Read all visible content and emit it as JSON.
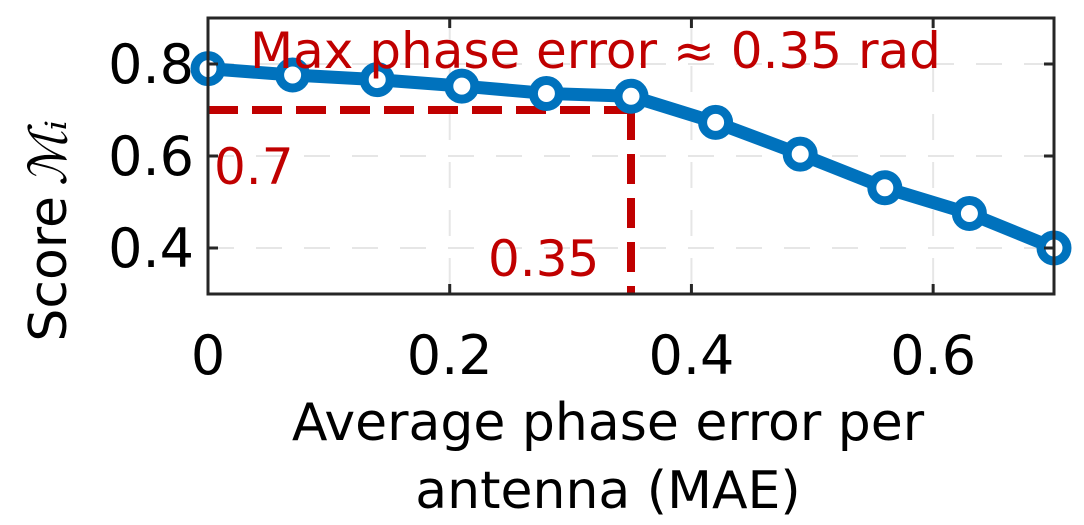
{
  "chart_data": {
    "type": "line",
    "xlabel_line1": "Average phase error per",
    "xlabel_line2": "antenna (MAE)",
    "ylabel_text": "Score",
    "ylabel_math": "ℳᵢ",
    "xlim": [
      0,
      0.7
    ],
    "ylim": [
      0.3,
      0.9
    ],
    "x_ticks": [
      0,
      0.2,
      0.4,
      0.6
    ],
    "x_tick_labels": [
      "0",
      "0.2",
      "0.4",
      "0.6"
    ],
    "y_ticks": [
      0.4,
      0.6,
      0.8
    ],
    "y_tick_labels": [
      "0.4",
      "0.6",
      "0.8"
    ],
    "grid": true,
    "series": [
      {
        "x": [
          0,
          0.07,
          0.14,
          0.21,
          0.28,
          0.35,
          0.42,
          0.49,
          0.56,
          0.63,
          0.7
        ],
        "y": [
          0.79,
          0.776,
          0.766,
          0.752,
          0.736,
          0.73,
          0.673,
          0.604,
          0.531,
          0.475,
          0.4
        ],
        "color": "#0072BD"
      }
    ],
    "reference_lines": {
      "color": "#C00000",
      "y_value": 0.7,
      "y_label": "0.7",
      "x_value": 0.35,
      "x_label": "0.35"
    },
    "annotation": {
      "text": "Max phase error ≈ 0.35 rad",
      "color": "#C00000"
    }
  }
}
